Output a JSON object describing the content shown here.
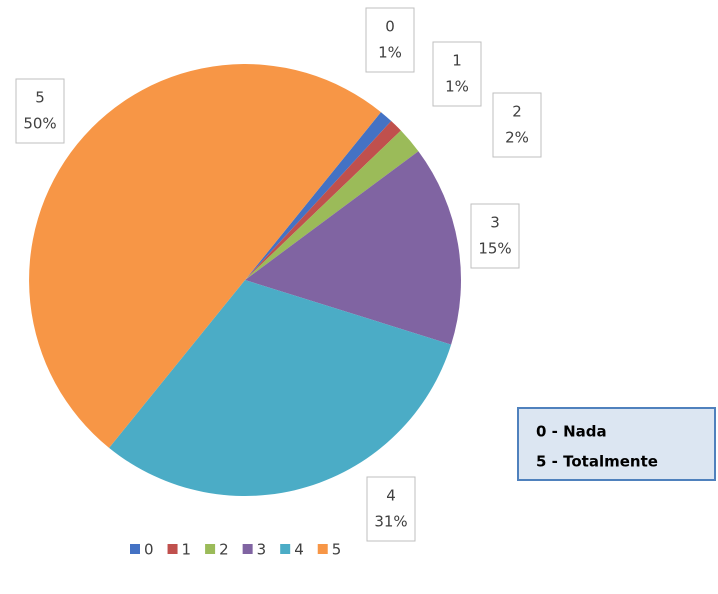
{
  "chart_data": {
    "type": "pie",
    "categories": [
      "0",
      "1",
      "2",
      "3",
      "4",
      "5"
    ],
    "values": [
      1,
      1,
      2,
      15,
      31,
      50
    ],
    "value_labels": [
      "1%",
      "1%",
      "2%",
      "15%",
      "31%",
      "50%"
    ],
    "colors": [
      "#4472c4",
      "#c0504d",
      "#9bbb59",
      "#8064a2",
      "#4bacc6",
      "#f79646"
    ],
    "legend": "bottom",
    "annotations": [
      "0 - Nada",
      "5 - Totalmente"
    ]
  }
}
